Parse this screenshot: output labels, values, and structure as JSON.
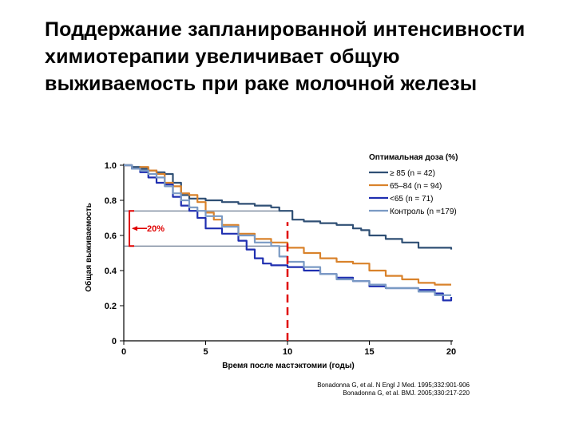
{
  "title_lines": [
    "Поддержание запланированной интенсивности",
    "химиотерапии увеличивает общую",
    "выживаемость при раке молочной железы"
  ],
  "citations": [
    "Bonadonna G, et al. N Engl J Med. 1995;332:901-906",
    "Bonadonna G, et al. BMJ. 2005;330:217-220"
  ],
  "chart_data": {
    "type": "line",
    "xlabel": "Время после мастэктомии (годы)",
    "ylabel": "Общая выживаемость",
    "xlim": [
      0,
      20
    ],
    "ylim": [
      0,
      1.0
    ],
    "x_ticks": [
      "0",
      "5",
      "10",
      "15",
      "20"
    ],
    "y_ticks": [
      "0",
      "0.2",
      "0.4",
      "0.6",
      "0.8",
      "1.0"
    ],
    "legend_title": "Оптимальная доза (%)",
    "legend_position": "top-right",
    "grid": false,
    "annotation": {
      "text": "20%",
      "x": 10,
      "upper": 0.74,
      "lower": 0.54
    },
    "series": [
      {
        "name": "≥ 85 (n = 42)",
        "color": "#2f4f74",
        "x": [
          0,
          0.5,
          1,
          1.5,
          2,
          2.5,
          3,
          3.5,
          4,
          5,
          6,
          7,
          8,
          9,
          9.5,
          10,
          10.3,
          11,
          12,
          13,
          14,
          14.5,
          15,
          16,
          17,
          18,
          19,
          20
        ],
        "y": [
          1.0,
          0.99,
          0.98,
          0.97,
          0.96,
          0.95,
          0.9,
          0.83,
          0.81,
          0.8,
          0.79,
          0.78,
          0.77,
          0.76,
          0.74,
          0.74,
          0.69,
          0.68,
          0.67,
          0.66,
          0.64,
          0.63,
          0.6,
          0.58,
          0.56,
          0.53,
          0.53,
          0.52
        ]
      },
      {
        "name": "65–84 (n = 94)",
        "color": "#d9822b",
        "x": [
          0,
          0.5,
          1,
          1.5,
          2,
          2.5,
          3,
          3.5,
          4,
          4.5,
          5,
          5.5,
          6,
          7,
          8,
          9,
          10,
          11,
          12,
          13,
          14,
          15,
          16,
          17,
          18,
          19,
          20
        ],
        "y": [
          1.0,
          0.98,
          0.99,
          0.97,
          0.95,
          0.9,
          0.88,
          0.84,
          0.83,
          0.79,
          0.73,
          0.69,
          0.66,
          0.61,
          0.58,
          0.56,
          0.53,
          0.5,
          0.47,
          0.45,
          0.44,
          0.4,
          0.37,
          0.35,
          0.33,
          0.32,
          0.32
        ]
      },
      {
        "name": "<65 (n = 71)",
        "color": "#1f2fb0",
        "x": [
          0,
          0.5,
          1,
          1.5,
          2,
          2.5,
          3,
          3.5,
          4,
          4.5,
          5,
          6,
          7,
          7.5,
          8,
          8.5,
          9,
          10,
          11,
          12,
          13,
          14,
          15,
          16,
          17,
          18,
          19,
          19.5,
          20
        ],
        "y": [
          1.0,
          0.98,
          0.96,
          0.93,
          0.9,
          0.89,
          0.82,
          0.77,
          0.74,
          0.7,
          0.64,
          0.61,
          0.57,
          0.52,
          0.47,
          0.44,
          0.43,
          0.42,
          0.4,
          0.38,
          0.36,
          0.34,
          0.31,
          0.3,
          0.3,
          0.29,
          0.27,
          0.23,
          0.25
        ]
      },
      {
        "name": "Контроль (n =179)",
        "color": "#7a9ac4",
        "x": [
          0,
          0.5,
          1,
          1.5,
          2,
          2.5,
          3,
          3.5,
          4,
          4.5,
          5,
          6,
          7,
          8,
          9,
          9.5,
          10,
          11,
          12,
          13,
          14,
          15,
          16,
          17,
          18,
          19,
          20
        ],
        "y": [
          1.0,
          0.98,
          0.97,
          0.95,
          0.93,
          0.88,
          0.84,
          0.8,
          0.76,
          0.74,
          0.71,
          0.65,
          0.6,
          0.56,
          0.54,
          0.48,
          0.45,
          0.42,
          0.38,
          0.35,
          0.34,
          0.32,
          0.3,
          0.3,
          0.28,
          0.26,
          0.26
        ]
      }
    ]
  }
}
